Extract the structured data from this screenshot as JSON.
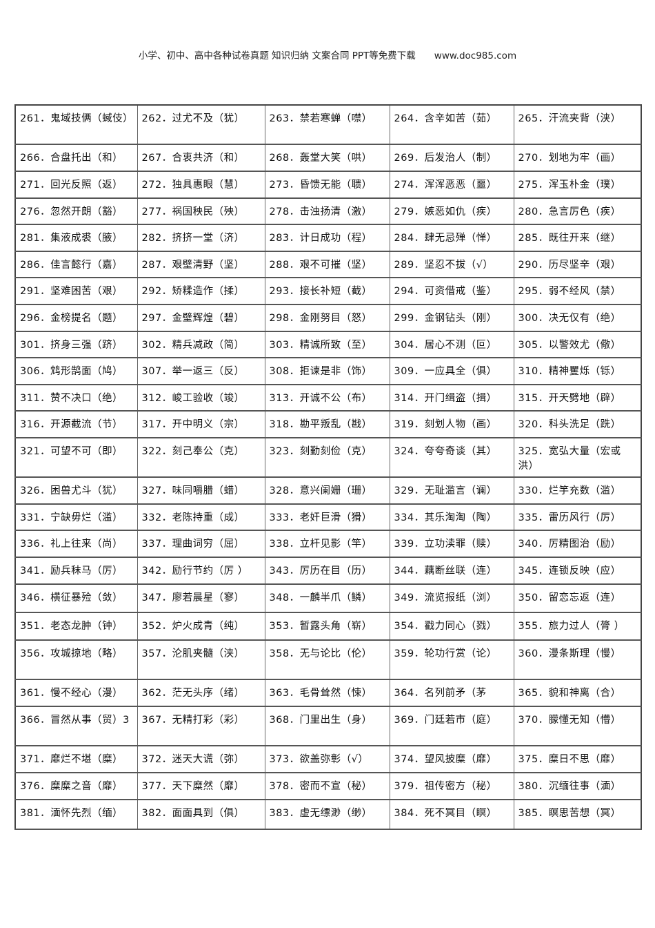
{
  "header": {
    "text": "小学、初中、高中各种试卷真题 知识归纳 文案合同 PPT等免费下载　　www.doc985.com"
  },
  "table": {
    "rows": [
      [
        "261．鬼域技俩（蜮伎）",
        "262．过尤不及（犹）",
        "263．禁若寒蝉（噤）",
        "264．含辛如苦（茹）",
        "265．汗流夹背（浃）"
      ],
      [
        "266．合盘托出（和）",
        "267．合衷共济（和）",
        "268．轰堂大笑（哄）",
        "269．后发治人（制）",
        "270．划地为牢（画）"
      ],
      [
        "271．回光反照（返）",
        "272．独具惠眼（慧）",
        "273．昏馈无能（聩）",
        "274．浑浑恶恶（噩）",
        "275．浑玉朴金（璞）"
      ],
      [
        "276．忽然开朗（豁）",
        "277．祸国秧民（殃）",
        "278．击浊扬清（激）",
        "279．嫉恶如仇（疾）",
        "280．急言厉色（疾）"
      ],
      [
        "281．集液成裘（腋）",
        "282．挤挤一堂（济）",
        "283．计日成功（程）",
        "284．肆无忌殚（惮）",
        "285．既往开来（继）"
      ],
      [
        "286．佳言懿行（嘉）",
        "287．艰壁清野（坚）",
        "288．艰不可摧（坚）",
        "289．坚忍不拔（√）",
        "290．历尽坚辛（艰）"
      ],
      [
        "291．坚难困苦（艰）",
        "292．矫糅造作（揉）",
        "293．接长补短（截）",
        "294．可资借戒（鉴）",
        "295．弱不经风（禁）"
      ],
      [
        "296．金榜提名（题）",
        "297．金壁辉煌（碧）",
        "298．金刚努目（怒）",
        "299．金钢钻头（刚）",
        "300．决无仅有（绝）"
      ],
      [
        "301．挤身三强（跻）",
        "302．精兵减政（简）",
        "303．精诚所致（至）",
        "304．居心不测（叵）",
        "305．以警效尤（儆）"
      ],
      [
        "306．鸩形鹄面（鸠）",
        "307．举一返三（反）",
        "308．拒谏是非（饰）",
        "309．一应具全（俱）",
        "310．精神矍烁（铄）"
      ],
      [
        "311．赞不决口（绝）",
        "312．峻工验收（竣）",
        "313．开诚不公（布）",
        "314．开门缉盗（揖）",
        "315．开天劈地（辟）"
      ],
      [
        "316．开源截流（节）",
        "317．开中明义（宗）",
        "318．勘平叛乱（戡）",
        "319．刻划人物（画）",
        "320．科头洗足（跣）"
      ],
      [
        "321．可望不可（即）",
        "322．刻己奉公（克）",
        "323．刻勤刻俭（克）",
        "324．夸夸奇谈（其）",
        "325．宽弘大量（宏或洪）"
      ],
      [
        "326．困兽尤斗（犹）",
        "327．味同嚼腊（蜡）",
        "328．意兴阑姗（珊）",
        "329．无耻滥言（谰）",
        "330．烂竽充数（滥）"
      ],
      [
        "331．宁缺毋烂（滥）",
        "332．老陈持重（成）",
        "333．老奸巨滑（猾）",
        "334．其乐淘淘（陶）",
        "335．雷历风行（厉）"
      ],
      [
        "336．礼上往来（尚）",
        "337．理曲词穷（屈）",
        "338．立杆见影（竿）",
        "339．立功渎罪（赎）",
        "340．厉精图治（励）"
      ],
      [
        "341．励兵秣马（厉）",
        "342．励行节约（厉 ）",
        "343．厉历在目（历）",
        "344．藕断丝联（连）",
        "345．连锁反映（应）"
      ],
      [
        "346．横征暴殓（敛）",
        "347．廖若晨星（寥）",
        "348．一麟半爪（鳞）",
        "349．流览报纸（浏）",
        "350．留恋忘返（连）"
      ],
      [
        "351．老态龙肿（钟）",
        "352．炉火成青（纯）",
        "353．暂露头角（崭）",
        "354．戳力同心（戮）",
        "355．旅力过人（膂 ）"
      ],
      [
        "356．攻城掠地（略）",
        "357．沦肌夹髓（浃）",
        "358．无与论比（伦）",
        "359．轮功行赏（论）",
        "360．漫条斯理（慢）"
      ],
      [
        "361．慢不经心（漫）",
        "362．茫无头序（绪）",
        "363．毛骨耸然（悚）",
        "364．名列前矛（茅",
        "365．貌和神离（合）"
      ],
      [
        "366．冒然从事（贸）3",
        "367．无精打彩（彩）",
        "368．门里出生（身）",
        "369．门廷若市（庭）",
        "370．朦懂无知（懵）"
      ],
      [
        "371．靡烂不堪（糜）",
        "372．迷天大谎（弥）",
        "373．欲盖弥彰（√）",
        "374．望风披糜（靡）",
        "375．糜日不思（靡）"
      ],
      [
        "376．糜糜之音（靡）",
        "377．天下糜然（靡）",
        "378．密而不宣（秘）",
        "379．祖传密方（秘）",
        "380．沉缅往事（湎）"
      ],
      [
        "381．湎怀先烈（缅）",
        "382．面面具到（俱）",
        "383．虚无缥渺（缈）",
        "384．死不冥目（瞑）",
        "385．瞑思苦想（冥）"
      ]
    ]
  }
}
